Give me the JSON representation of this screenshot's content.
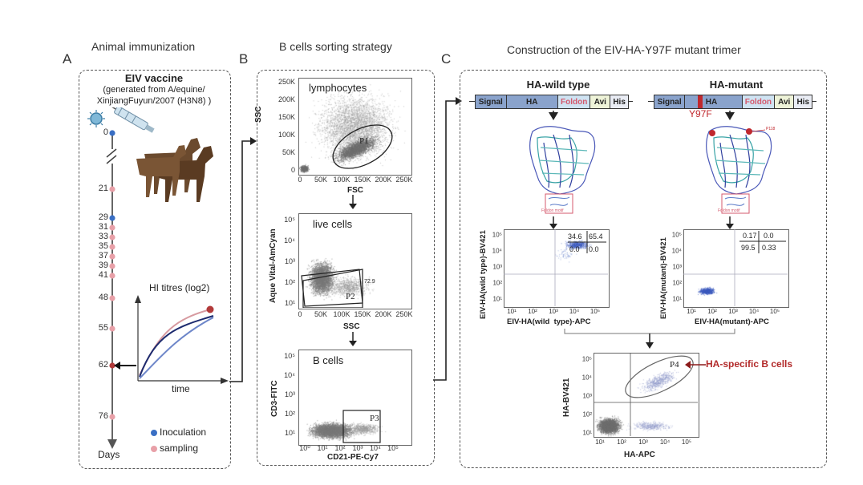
{
  "panels": {
    "a": {
      "letter": "A",
      "title": "Animal  immunization"
    },
    "b": {
      "letter": "B",
      "title": "B cells sorting strategy"
    },
    "c": {
      "letter": "C",
      "title": "Construction of the  EIV-HA-Y97F mutant trimer"
    }
  },
  "vaccine": {
    "title": "EIV vaccine",
    "subtitle_line1": "(generated from A/equine/",
    "subtitle_line2": "XinjiangFuyun/2007 (H3N8) )"
  },
  "timeline": {
    "days": [
      "0",
      "21",
      "29",
      "31",
      "33",
      "35",
      "37",
      "39",
      "41",
      "48",
      "55",
      "62",
      "76"
    ],
    "axis_label": "Days",
    "hi_title": "HI titres (log2)",
    "hi_xlabel": "time",
    "legend_inoculation": "Inoculation",
    "legend_sampling": "sampling",
    "colors": {
      "inoculation": "#3a6fc4",
      "sampling": "#e8a0a8",
      "hi_dot": "#b23a3a"
    }
  },
  "facs": {
    "p1": {
      "label": "lymphocytes",
      "gate": "P1",
      "xlabel": "FSC",
      "ylabel": "SSC",
      "xticks": [
        "0",
        "50K",
        "100K",
        "150K",
        "200K",
        "250K"
      ],
      "yticks": [
        "250K",
        "200K",
        "150K",
        "100K",
        "50K",
        "0"
      ]
    },
    "p2": {
      "label": "live cells",
      "gate": "P2",
      "gate_value": "72.9",
      "xlabel": "SSC",
      "ylabel": "Aque Vital-AmCyan",
      "xticks": [
        "0",
        "50K",
        "100K",
        "150K",
        "200K",
        "250K"
      ],
      "yticks": [
        "10⁵",
        "10⁴",
        "10³",
        "10²",
        "10¹"
      ]
    },
    "p3": {
      "label": "B cells",
      "gate": "P3",
      "xlabel": "CD21-PE-Cy7",
      "ylabel": "CD3-FITC",
      "xticks": [
        "10⁰",
        "10¹",
        "10²",
        "10³",
        "10⁴",
        "10⁵"
      ],
      "yticks": [
        "10⁵",
        "10⁴",
        "10³",
        "10²",
        "10¹"
      ]
    }
  },
  "constructs": {
    "wt": {
      "title": "HA-wild type",
      "domains": [
        "Signal",
        "HA",
        "Foldon",
        "Avi",
        "His"
      ]
    },
    "mut": {
      "title": "HA-mutant",
      "domains": [
        "Signal",
        "HA",
        "Foldon",
        "Avi",
        "His"
      ],
      "mutation": "Y97F"
    }
  },
  "structure_labels": {
    "foldon": "Foldon motif",
    "p118": "P118"
  },
  "quadrants": {
    "wt": {
      "q": [
        "34.6",
        "65.4",
        "0.0",
        "0.0"
      ],
      "xlabel": "EIV-HA(wild  type)-APC",
      "ylabel": "EIV-HA(wild type)-BV421",
      "xticks": [
        "10¹",
        "10²",
        "10³",
        "10⁴",
        "10⁵"
      ],
      "yticks": [
        "10⁵",
        "10⁴",
        "10³",
        "10²",
        "10¹"
      ]
    },
    "mut": {
      "q": [
        "0.17",
        "0.0",
        "99.5",
        "0.33"
      ],
      "xlabel": "EIV-HA(mutant)-APC",
      "ylabel": "EIV-HA(mutant)-BV421",
      "xticks": [
        "10¹",
        "10²",
        "10³",
        "10⁴",
        "10⁵"
      ],
      "yticks": [
        "10⁵",
        "10⁴",
        "10³",
        "10²",
        "10¹"
      ]
    },
    "final": {
      "gate": "P4",
      "xlabel": "HA-APC",
      "ylabel": "HA-BV421",
      "annotation": "HA-specific B cells",
      "xticks": [
        "10¹",
        "10²",
        "10³",
        "10⁴",
        "10⁵"
      ],
      "yticks": [
        "10⁵",
        "10⁴",
        "10³",
        "10²",
        "10¹"
      ]
    }
  }
}
